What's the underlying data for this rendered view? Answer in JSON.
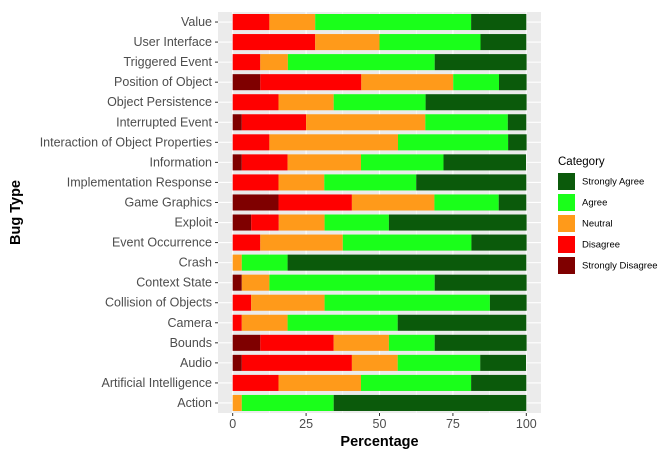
{
  "chart_data": {
    "type": "bar",
    "orientation": "horizontal",
    "stacked": true,
    "xlabel": "Percentage",
    "ylabel": "Bug Type",
    "xlim": [
      0,
      100
    ],
    "xticks": [
      0,
      25,
      50,
      75,
      100
    ],
    "grid": true,
    "legend": {
      "title": "Category",
      "position": "right"
    },
    "categories": [
      "Value",
      "User Interface",
      "Triggered Event",
      "Position of Object",
      "Object Persistence",
      "Interrupted Event",
      "Interaction of Object Properties",
      "Information",
      "Implementation Response",
      "Game Graphics",
      "Exploit",
      "Event Occurrence",
      "Crash",
      "Context State",
      "Collision of Objects",
      "Camera",
      "Bounds",
      "Audio",
      "Artificial Intelligence",
      "Action"
    ],
    "stack_order": [
      "Strongly Disagree",
      "Disagree",
      "Neutral",
      "Agree",
      "Strongly Agree"
    ],
    "legend_order": [
      "Strongly Agree",
      "Agree",
      "Neutral",
      "Disagree",
      "Strongly Disagree"
    ],
    "colors": {
      "Strongly Agree": "#0b5a0b",
      "Agree": "#1aff1a",
      "Neutral": "#ff9a1a",
      "Disagree": "#ff0000",
      "Strongly Disagree": "#7f0000"
    },
    "series": [
      {
        "name": "Strongly Disagree",
        "values": [
          0,
          0,
          0,
          9.4,
          0,
          3.1,
          0,
          3.1,
          0,
          15.6,
          6.3,
          0,
          0,
          3.1,
          0,
          0,
          9.4,
          3.1,
          0,
          0
        ]
      },
      {
        "name": "Disagree",
        "values": [
          12.5,
          28.1,
          9.4,
          34.4,
          15.6,
          21.9,
          12.5,
          15.6,
          15.6,
          25.0,
          9.4,
          9.4,
          0,
          0,
          6.3,
          3.1,
          25.0,
          37.5,
          15.6,
          0
        ]
      },
      {
        "name": "Neutral",
        "values": [
          15.6,
          21.9,
          9.4,
          31.3,
          18.8,
          40.6,
          43.8,
          25.0,
          15.6,
          28.1,
          15.6,
          28.1,
          3.1,
          9.4,
          25.0,
          15.6,
          18.8,
          15.6,
          28.1,
          3.1
        ]
      },
      {
        "name": "Agree",
        "values": [
          53.1,
          34.4,
          50.0,
          15.6,
          31.3,
          28.1,
          37.5,
          28.1,
          31.3,
          21.9,
          21.9,
          43.8,
          15.6,
          56.3,
          56.3,
          37.5,
          15.6,
          28.1,
          37.5,
          31.3
        ]
      },
      {
        "name": "Strongly Agree",
        "values": [
          18.8,
          15.6,
          31.3,
          9.4,
          34.4,
          6.3,
          6.3,
          28.1,
          37.5,
          9.4,
          46.9,
          18.8,
          81.3,
          31.3,
          12.5,
          43.8,
          31.3,
          15.6,
          18.8,
          65.6
        ]
      }
    ]
  }
}
